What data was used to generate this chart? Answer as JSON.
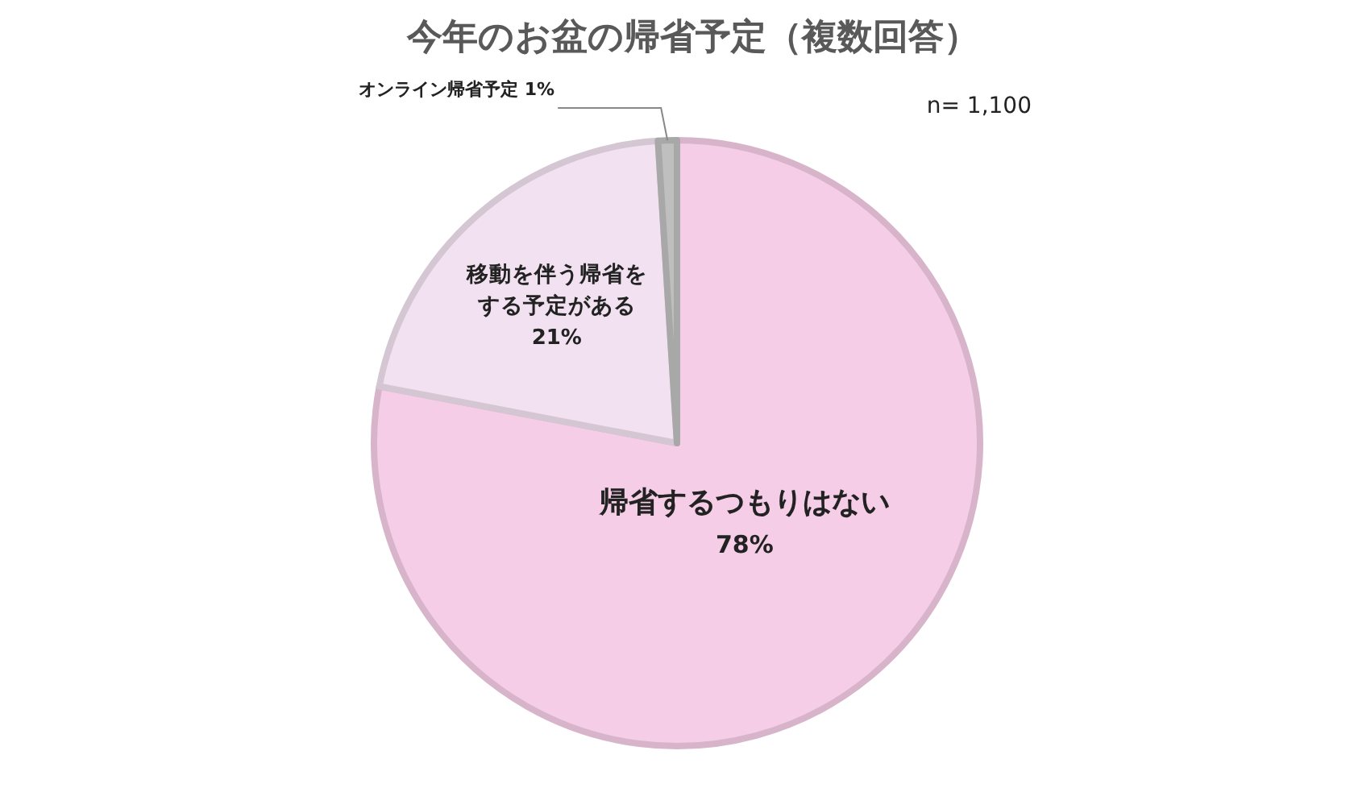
{
  "chart_data": {
    "type": "pie",
    "title": "今年のお盆の帰省予定（複数回答）",
    "categories": [
      "帰省するつもりはない",
      "移動を伴う帰省をする予定がある",
      "オンライン帰省予定"
    ],
    "values": [
      78,
      21,
      1
    ],
    "colors": [
      "#f5cde6",
      "#f2e1f0",
      "#bfbfbf"
    ],
    "value_labels": [
      "78%",
      "21%",
      "1%"
    ],
    "annotations": [
      "n= 1,100"
    ]
  }
}
